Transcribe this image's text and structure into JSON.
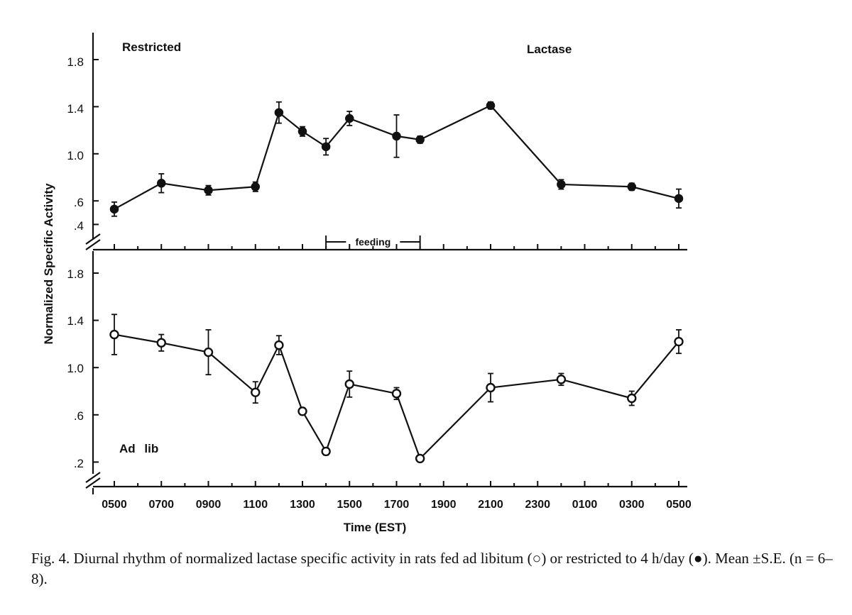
{
  "chart_data": {
    "type": "line",
    "xlabel": "Time (EST)",
    "ylabel": "Normalized Specific Activity",
    "categories": [
      "0500",
      "0700",
      "0900",
      "1100",
      "1300",
      "1500",
      "1700",
      "1900",
      "2100",
      "2300",
      "0100",
      "0300",
      "0500"
    ],
    "panels": [
      {
        "name": "Restricted",
        "annotation": "Lactase",
        "marker": "filled",
        "y_tick_labels": [
          "1.8",
          "1.4",
          "1.0",
          ".6",
          ".4"
        ],
        "y_ticks": [
          1.8,
          1.4,
          1.0,
          0.6,
          0.4
        ],
        "ylim": [
          0.2,
          2.0
        ],
        "feeding_label": "feeding",
        "feeding_hours": [
          14,
          18
        ],
        "points": [
          {
            "t": 5,
            "y": 0.53,
            "se": 0.06
          },
          {
            "t": 7,
            "y": 0.75,
            "se": 0.08
          },
          {
            "t": 9,
            "y": 0.69,
            "se": 0.04
          },
          {
            "t": 11,
            "y": 0.72,
            "se": 0.04
          },
          {
            "t": 12,
            "y": 1.35,
            "se": 0.09
          },
          {
            "t": 13,
            "y": 1.19,
            "se": 0.04
          },
          {
            "t": 14,
            "y": 1.06,
            "se": 0.07
          },
          {
            "t": 15,
            "y": 1.3,
            "se": 0.06
          },
          {
            "t": 17,
            "y": 1.15,
            "se": 0.18
          },
          {
            "t": 18,
            "y": 1.12,
            "se": 0.03
          },
          {
            "t": 21,
            "y": 1.41,
            "se": 0.03
          },
          {
            "t": 24,
            "y": 0.74,
            "se": 0.04
          },
          {
            "t": 27,
            "y": 0.72,
            "se": 0.03
          },
          {
            "t": 29,
            "y": 0.62,
            "se": 0.08
          }
        ]
      },
      {
        "name": "Ad lib",
        "marker": "open",
        "y_tick_labels": [
          "1.8",
          "1.4",
          "1.0",
          ".6",
          ".2"
        ],
        "y_ticks": [
          1.8,
          1.4,
          1.0,
          0.6,
          0.2
        ],
        "ylim": [
          0.0,
          2.0
        ],
        "points": [
          {
            "t": 5,
            "y": 1.28,
            "se": 0.17
          },
          {
            "t": 7,
            "y": 1.21,
            "se": 0.07
          },
          {
            "t": 9,
            "y": 1.13,
            "se": 0.19
          },
          {
            "t": 11,
            "y": 0.79,
            "se": 0.09
          },
          {
            "t": 12,
            "y": 1.19,
            "se": 0.08
          },
          {
            "t": 13,
            "y": 0.63,
            "se": 0.03
          },
          {
            "t": 14,
            "y": 0.29,
            "se": 0.03
          },
          {
            "t": 15,
            "y": 0.86,
            "se": 0.11
          },
          {
            "t": 17,
            "y": 0.78,
            "se": 0.05
          },
          {
            "t": 18,
            "y": 0.23,
            "se": 0.01
          },
          {
            "t": 21,
            "y": 0.83,
            "se": 0.12
          },
          {
            "t": 24,
            "y": 0.9,
            "se": 0.05
          },
          {
            "t": 27,
            "y": 0.74,
            "se": 0.06
          },
          {
            "t": 29,
            "y": 1.22,
            "se": 0.1
          }
        ]
      }
    ]
  },
  "caption": {
    "part1": "Fig. 4. Diurnal rhythm of normalized lactase specific activity in rats fed ad libitum (○) or restricted",
    "part2": "to 4 h/day (●). Mean ±S.E. (n = 6–8)."
  }
}
